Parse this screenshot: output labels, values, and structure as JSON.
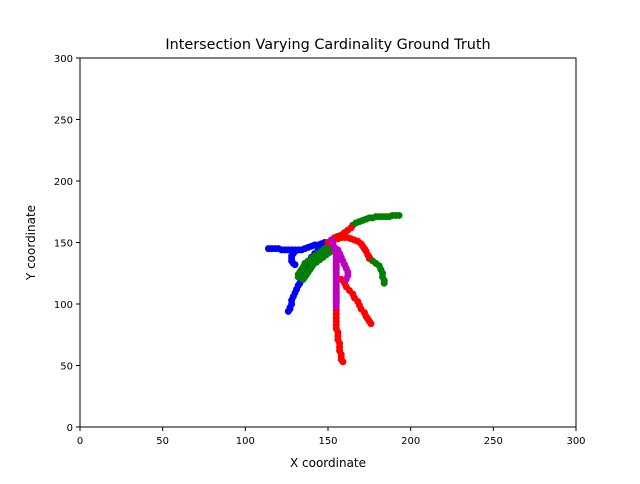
{
  "chart_data": {
    "type": "scatter",
    "title": "Intersection Varying Cardinality Ground Truth",
    "xlabel": "X coordinate",
    "ylabel": "Y coordinate",
    "xlim": [
      0,
      300
    ],
    "ylim": [
      0,
      300
    ],
    "xticks": [
      0,
      50,
      100,
      150,
      200,
      250,
      300
    ],
    "yticks": [
      0,
      50,
      100,
      150,
      200,
      250,
      300
    ],
    "grid": false,
    "legend": "none",
    "series": [
      {
        "color": "#0000ff",
        "points": [
          [
            114,
            145
          ],
          [
            116,
            145
          ],
          [
            118,
            145
          ],
          [
            120,
            145
          ],
          [
            122,
            144
          ],
          [
            124,
            144
          ],
          [
            126,
            144
          ],
          [
            128,
            144
          ],
          [
            130,
            144
          ],
          [
            132,
            144
          ],
          [
            134,
            144
          ],
          [
            136,
            145
          ],
          [
            138,
            146
          ],
          [
            140,
            147
          ],
          [
            142,
            148
          ],
          [
            144,
            148
          ],
          [
            146,
            149
          ],
          [
            148,
            150
          ],
          [
            150,
            150
          ],
          [
            130,
            143
          ],
          [
            129,
            141
          ],
          [
            128,
            139
          ],
          [
            128,
            137
          ],
          [
            128,
            135
          ],
          [
            129,
            133
          ],
          [
            130,
            132
          ],
          [
            148,
            148
          ],
          [
            146,
            146
          ],
          [
            144,
            144
          ],
          [
            142,
            141
          ],
          [
            140,
            138
          ],
          [
            139,
            135
          ],
          [
            138,
            132
          ],
          [
            137,
            129
          ],
          [
            136,
            126
          ],
          [
            135,
            123
          ],
          [
            134,
            120
          ],
          [
            133,
            117
          ],
          [
            132,
            115
          ],
          [
            131,
            112
          ],
          [
            130,
            109
          ],
          [
            129,
            106
          ],
          [
            128,
            103
          ],
          [
            128,
            100
          ],
          [
            127,
            97
          ],
          [
            126,
            94
          ],
          [
            127,
            96
          ]
        ]
      },
      {
        "color": "#008000",
        "points": [
          [
            165,
            164
          ],
          [
            167,
            166
          ],
          [
            169,
            167
          ],
          [
            171,
            168
          ],
          [
            173,
            169
          ],
          [
            175,
            170
          ],
          [
            177,
            170
          ],
          [
            179,
            171
          ],
          [
            181,
            171
          ],
          [
            183,
            171
          ],
          [
            185,
            171
          ],
          [
            187,
            171
          ],
          [
            189,
            172
          ],
          [
            191,
            172
          ],
          [
            193,
            172
          ],
          [
            150,
            148
          ],
          [
            148,
            145
          ],
          [
            146,
            143
          ],
          [
            144,
            141
          ],
          [
            142,
            139
          ],
          [
            140,
            137
          ],
          [
            138,
            135
          ],
          [
            136,
            133
          ],
          [
            135,
            130
          ],
          [
            134,
            128
          ],
          [
            133,
            126
          ],
          [
            132,
            124
          ],
          [
            132,
            122
          ],
          [
            153,
            146
          ],
          [
            152,
            144
          ],
          [
            151,
            142
          ],
          [
            149,
            140
          ],
          [
            147,
            138
          ],
          [
            145,
            136
          ],
          [
            143,
            134
          ],
          [
            141,
            132
          ],
          [
            140,
            130
          ],
          [
            139,
            128
          ],
          [
            138,
            126
          ],
          [
            137,
            124
          ],
          [
            136,
            122
          ],
          [
            135,
            120
          ],
          [
            175,
            137
          ],
          [
            177,
            135
          ],
          [
            179,
            133
          ],
          [
            181,
            131
          ],
          [
            182,
            128
          ],
          [
            183,
            125
          ],
          [
            183,
            122
          ],
          [
            184,
            119
          ],
          [
            184,
            117
          ]
        ]
      },
      {
        "color": "#ff0000",
        "points": [
          [
            150,
            150
          ],
          [
            152,
            152
          ],
          [
            154,
            154
          ],
          [
            156,
            155
          ],
          [
            158,
            156
          ],
          [
            160,
            158
          ],
          [
            162,
            160
          ],
          [
            164,
            162
          ],
          [
            156,
            153
          ],
          [
            158,
            154
          ],
          [
            160,
            154
          ],
          [
            162,
            154
          ],
          [
            164,
            153
          ],
          [
            166,
            152
          ],
          [
            168,
            151
          ],
          [
            170,
            149
          ],
          [
            171,
            147
          ],
          [
            172,
            145
          ],
          [
            173,
            143
          ],
          [
            174,
            140
          ],
          [
            175,
            138
          ],
          [
            158,
            120
          ],
          [
            160,
            117
          ],
          [
            161,
            114
          ],
          [
            163,
            111
          ],
          [
            165,
            108
          ],
          [
            166,
            105
          ],
          [
            168,
            102
          ],
          [
            169,
            99
          ],
          [
            170,
            96
          ],
          [
            172,
            93
          ],
          [
            173,
            90
          ],
          [
            174,
            88
          ],
          [
            175,
            86
          ],
          [
            176,
            84
          ],
          [
            155,
            95
          ],
          [
            155,
            92
          ],
          [
            155,
            89
          ],
          [
            155,
            86
          ],
          [
            155,
            83
          ],
          [
            155,
            80
          ],
          [
            156,
            77
          ],
          [
            156,
            74
          ],
          [
            156,
            71
          ],
          [
            157,
            68
          ],
          [
            157,
            65
          ],
          [
            157,
            62
          ],
          [
            158,
            59
          ],
          [
            158,
            57
          ],
          [
            158,
            55
          ],
          [
            159,
            53
          ]
        ]
      },
      {
        "color": "#bf00bf",
        "points": [
          [
            152,
            152
          ],
          [
            153,
            150
          ],
          [
            153,
            148
          ],
          [
            154,
            146
          ],
          [
            154,
            144
          ],
          [
            155,
            142
          ],
          [
            155,
            140
          ],
          [
            155,
            138
          ],
          [
            155,
            136
          ],
          [
            155,
            134
          ],
          [
            155,
            132
          ],
          [
            155,
            130
          ],
          [
            155,
            128
          ],
          [
            155,
            126
          ],
          [
            155,
            124
          ],
          [
            155,
            122
          ],
          [
            155,
            120
          ],
          [
            155,
            118
          ],
          [
            155,
            116
          ],
          [
            155,
            114
          ],
          [
            155,
            112
          ],
          [
            155,
            110
          ],
          [
            155,
            108
          ],
          [
            155,
            106
          ],
          [
            155,
            104
          ],
          [
            155,
            102
          ],
          [
            155,
            100
          ],
          [
            155,
            98
          ],
          [
            156,
            144
          ],
          [
            157,
            141
          ],
          [
            158,
            138
          ],
          [
            159,
            135
          ],
          [
            160,
            132
          ],
          [
            161,
            129
          ],
          [
            162,
            126
          ],
          [
            162,
            123
          ],
          [
            161,
            120
          ]
        ]
      }
    ]
  }
}
